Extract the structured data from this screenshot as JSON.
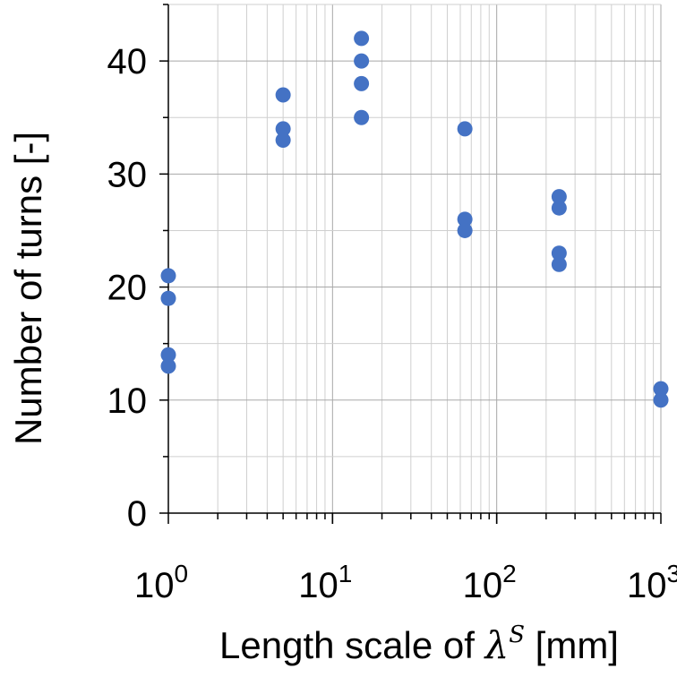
{
  "chart_data": {
    "type": "scatter",
    "xlabel_prefix": "Length scale of ",
    "xlabel_symbol": "λ",
    "xlabel_superscript": "S",
    "xlabel_suffix": " [mm]",
    "ylabel": "Number of turns [-]",
    "xscale": "log",
    "xlim": [
      1,
      1000
    ],
    "ylim": [
      0,
      45
    ],
    "yticks": [
      0,
      10,
      20,
      30,
      40
    ],
    "xtick_bases": [
      "10",
      "10",
      "10",
      "10"
    ],
    "xtick_exponents": [
      "0",
      "1",
      "2",
      "3"
    ],
    "grid": true,
    "marker_color": "#4472c4",
    "points": [
      {
        "x": 1,
        "y": 21
      },
      {
        "x": 1,
        "y": 19
      },
      {
        "x": 1,
        "y": 14
      },
      {
        "x": 1,
        "y": 13
      },
      {
        "x": 5,
        "y": 37
      },
      {
        "x": 5,
        "y": 34
      },
      {
        "x": 5,
        "y": 33
      },
      {
        "x": 15,
        "y": 42
      },
      {
        "x": 15,
        "y": 40
      },
      {
        "x": 15,
        "y": 38
      },
      {
        "x": 15,
        "y": 35
      },
      {
        "x": 64,
        "y": 34
      },
      {
        "x": 64,
        "y": 26
      },
      {
        "x": 64,
        "y": 25
      },
      {
        "x": 240,
        "y": 28
      },
      {
        "x": 240,
        "y": 27
      },
      {
        "x": 240,
        "y": 23
      },
      {
        "x": 240,
        "y": 22
      },
      {
        "x": 1000,
        "y": 11
      },
      {
        "x": 1000,
        "y": 10
      }
    ]
  }
}
